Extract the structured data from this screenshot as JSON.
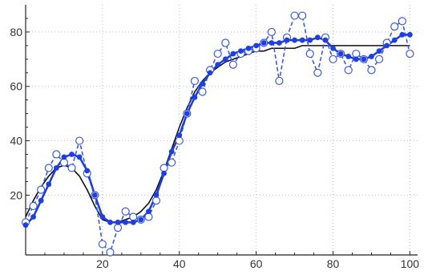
{
  "chart_data": {
    "type": "line",
    "title": "",
    "xlabel": "",
    "ylabel": "",
    "xlim": [
      0,
      102
    ],
    "ylim": [
      -2,
      90
    ],
    "x_ticks": [
      20,
      40,
      60,
      80,
      100
    ],
    "y_ticks": [
      20,
      40,
      60,
      80
    ],
    "grid": "dotted",
    "colors": {
      "raw": "#3b5bdb",
      "smooth": "#1f3fe0",
      "fit": "#111111",
      "grid": "#bbbbbb"
    },
    "series": [
      {
        "style": "dashed-line-open-circles",
        "x": [
          0,
          2,
          4,
          6,
          8,
          10,
          12,
          14,
          16,
          18,
          20,
          22,
          24,
          26,
          28,
          30,
          32,
          34,
          36,
          38,
          40,
          42,
          44,
          46,
          48,
          50,
          52,
          54,
          56,
          58,
          60,
          62,
          64,
          66,
          68,
          70,
          72,
          74,
          76,
          78,
          80,
          82,
          84,
          86,
          88,
          90,
          92,
          94,
          96,
          98,
          100
        ],
        "values": [
          10,
          16,
          22,
          30,
          35,
          32,
          30,
          40,
          28,
          20,
          2,
          -1,
          8,
          14,
          12,
          11,
          12,
          18,
          30,
          32,
          40,
          50,
          62,
          58,
          66,
          72,
          76,
          68,
          72,
          73,
          74,
          76,
          80,
          62,
          78,
          86,
          86,
          72,
          65,
          78,
          70,
          72,
          66,
          72,
          70,
          66,
          70,
          76,
          82,
          84,
          72
        ]
      },
      {
        "style": "solid-line-filled-dots",
        "x": [
          0,
          2,
          4,
          6,
          8,
          10,
          12,
          14,
          16,
          18,
          20,
          22,
          24,
          26,
          28,
          30,
          32,
          34,
          36,
          38,
          40,
          42,
          44,
          46,
          48,
          50,
          52,
          54,
          56,
          58,
          60,
          62,
          64,
          66,
          68,
          70,
          72,
          74,
          76,
          78,
          80,
          82,
          84,
          86,
          88,
          90,
          92,
          94,
          96,
          98,
          100
        ],
        "values": [
          9,
          12,
          18,
          24,
          30,
          34,
          35,
          34,
          29,
          20,
          12,
          10,
          10,
          10,
          10,
          11,
          14,
          20,
          28,
          36,
          42,
          50,
          56,
          61,
          65,
          68,
          70,
          72,
          73,
          74,
          75,
          76,
          76,
          76,
          77,
          77,
          77,
          77,
          78,
          77,
          74,
          72,
          71,
          70,
          70,
          71,
          73,
          75,
          77,
          79,
          79
        ]
      },
      {
        "style": "thin-solid-line",
        "x": [
          0,
          2,
          4,
          6,
          8,
          10,
          12,
          14,
          16,
          18,
          20,
          22,
          24,
          26,
          28,
          30,
          32,
          34,
          36,
          38,
          40,
          42,
          44,
          46,
          48,
          50,
          52,
          54,
          56,
          58,
          60,
          62,
          64,
          66,
          68,
          70,
          72,
          74,
          76,
          78,
          80,
          82,
          84,
          86,
          88,
          90,
          92,
          94,
          96,
          98,
          100
        ],
        "values": [
          12,
          18,
          23,
          27,
          30,
          31,
          30,
          27,
          22,
          16,
          11,
          10,
          10,
          11,
          12,
          14,
          17,
          22,
          29,
          37,
          45,
          52,
          58,
          62,
          65,
          67,
          69,
          70,
          71,
          72,
          73,
          73,
          74,
          74,
          74,
          74,
          75,
          75,
          75,
          75,
          75,
          75,
          75,
          75,
          75,
          75,
          75,
          75,
          75,
          75,
          75
        ]
      }
    ]
  }
}
